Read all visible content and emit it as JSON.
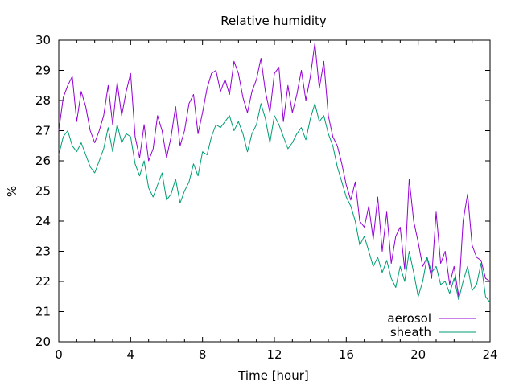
{
  "chart_data": {
    "type": "line",
    "title": "Relative humidity",
    "xlabel": "Time [hour]",
    "ylabel": "%",
    "xlim": [
      0,
      24
    ],
    "ylim": [
      20,
      30
    ],
    "xticks": [
      0,
      4,
      8,
      12,
      16,
      20,
      24
    ],
    "yticks": [
      20,
      21,
      22,
      23,
      24,
      25,
      26,
      27,
      28,
      29,
      30
    ],
    "grid": false,
    "legend_position": "bottom-right",
    "series": [
      {
        "name": "aerosol",
        "color": "#9400d3",
        "x": [
          0.0,
          0.25,
          0.5,
          0.75,
          1.0,
          1.25,
          1.5,
          1.75,
          2.0,
          2.25,
          2.5,
          2.75,
          3.0,
          3.25,
          3.5,
          3.75,
          4.0,
          4.25,
          4.5,
          4.75,
          5.0,
          5.25,
          5.5,
          5.75,
          6.0,
          6.25,
          6.5,
          6.75,
          7.0,
          7.25,
          7.5,
          7.75,
          8.0,
          8.25,
          8.5,
          8.75,
          9.0,
          9.25,
          9.5,
          9.75,
          10.0,
          10.25,
          10.5,
          10.75,
          11.0,
          11.25,
          11.5,
          11.75,
          12.0,
          12.25,
          12.5,
          12.75,
          13.0,
          13.25,
          13.5,
          13.75,
          14.0,
          14.25,
          14.5,
          14.75,
          15.0,
          15.25,
          15.5,
          15.75,
          16.0,
          16.25,
          16.5,
          16.75,
          17.0,
          17.25,
          17.5,
          17.75,
          18.0,
          18.25,
          18.5,
          18.75,
          19.0,
          19.25,
          19.5,
          19.75,
          20.0,
          20.25,
          20.5,
          20.75,
          21.0,
          21.25,
          21.5,
          21.75,
          22.0,
          22.25,
          22.5,
          22.75,
          23.0,
          23.25,
          23.5,
          23.75,
          24.0
        ],
        "values": [
          27.0,
          28.1,
          28.5,
          28.8,
          27.3,
          28.3,
          27.8,
          27.0,
          26.6,
          27.0,
          27.5,
          28.5,
          27.2,
          28.6,
          27.5,
          28.3,
          28.9,
          26.8,
          26.1,
          27.2,
          26.0,
          26.4,
          27.5,
          27.0,
          26.1,
          26.8,
          27.8,
          26.5,
          27.0,
          27.9,
          28.2,
          26.9,
          27.6,
          28.4,
          28.9,
          29.0,
          28.3,
          28.7,
          28.2,
          29.3,
          28.9,
          28.1,
          27.6,
          28.3,
          28.7,
          29.4,
          28.3,
          27.6,
          28.9,
          29.1,
          27.3,
          28.5,
          27.6,
          28.2,
          29.0,
          28.0,
          28.8,
          29.9,
          28.4,
          29.3,
          27.5,
          26.8,
          26.5,
          25.9,
          25.2,
          24.7,
          25.3,
          24.0,
          23.8,
          24.5,
          23.4,
          24.8,
          23.0,
          24.3,
          22.6,
          23.5,
          23.8,
          22.4,
          25.4,
          24.0,
          23.3,
          22.5,
          22.8,
          22.1,
          24.3,
          22.6,
          23.0,
          21.9,
          22.5,
          21.5,
          24.0,
          24.9,
          23.2,
          22.8,
          22.7,
          22.1,
          22.0
        ]
      },
      {
        "name": "sheath",
        "color": "#009e73",
        "x": [
          0.0,
          0.25,
          0.5,
          0.75,
          1.0,
          1.25,
          1.5,
          1.75,
          2.0,
          2.25,
          2.5,
          2.75,
          3.0,
          3.25,
          3.5,
          3.75,
          4.0,
          4.25,
          4.5,
          4.75,
          5.0,
          5.25,
          5.5,
          5.75,
          6.0,
          6.25,
          6.5,
          6.75,
          7.0,
          7.25,
          7.5,
          7.75,
          8.0,
          8.25,
          8.5,
          8.75,
          9.0,
          9.25,
          9.5,
          9.75,
          10.0,
          10.25,
          10.5,
          10.75,
          11.0,
          11.25,
          11.5,
          11.75,
          12.0,
          12.25,
          12.5,
          12.75,
          13.0,
          13.25,
          13.5,
          13.75,
          14.0,
          14.25,
          14.5,
          14.75,
          15.0,
          15.25,
          15.5,
          15.75,
          16.0,
          16.25,
          16.5,
          16.75,
          17.0,
          17.25,
          17.5,
          17.75,
          18.0,
          18.25,
          18.5,
          18.75,
          19.0,
          19.25,
          19.5,
          19.75,
          20.0,
          20.25,
          20.5,
          20.75,
          21.0,
          21.25,
          21.5,
          21.75,
          22.0,
          22.25,
          22.5,
          22.75,
          23.0,
          23.25,
          23.5,
          23.75,
          24.0
        ],
        "values": [
          26.2,
          26.8,
          27.0,
          26.5,
          26.3,
          26.6,
          26.2,
          25.8,
          25.6,
          26.0,
          26.4,
          27.1,
          26.3,
          27.2,
          26.6,
          26.9,
          26.8,
          25.9,
          25.5,
          26.0,
          25.1,
          24.8,
          25.2,
          25.6,
          24.7,
          24.9,
          25.4,
          24.6,
          25.0,
          25.3,
          25.9,
          25.5,
          26.3,
          26.2,
          26.8,
          27.2,
          27.1,
          27.3,
          27.5,
          27.0,
          27.3,
          26.9,
          26.3,
          26.9,
          27.2,
          27.9,
          27.4,
          26.6,
          27.5,
          27.2,
          26.8,
          26.4,
          26.6,
          26.9,
          27.1,
          26.7,
          27.4,
          27.9,
          27.3,
          27.5,
          26.9,
          26.5,
          25.8,
          25.3,
          24.8,
          24.5,
          24.0,
          23.2,
          23.5,
          23.0,
          22.5,
          22.8,
          22.3,
          22.7,
          22.1,
          21.8,
          22.5,
          22.0,
          23.0,
          22.3,
          21.5,
          22.0,
          22.8,
          22.3,
          22.5,
          21.9,
          22.0,
          21.6,
          22.1,
          21.4,
          22.0,
          22.5,
          21.7,
          21.9,
          22.6,
          21.5,
          21.3
        ]
      }
    ]
  }
}
